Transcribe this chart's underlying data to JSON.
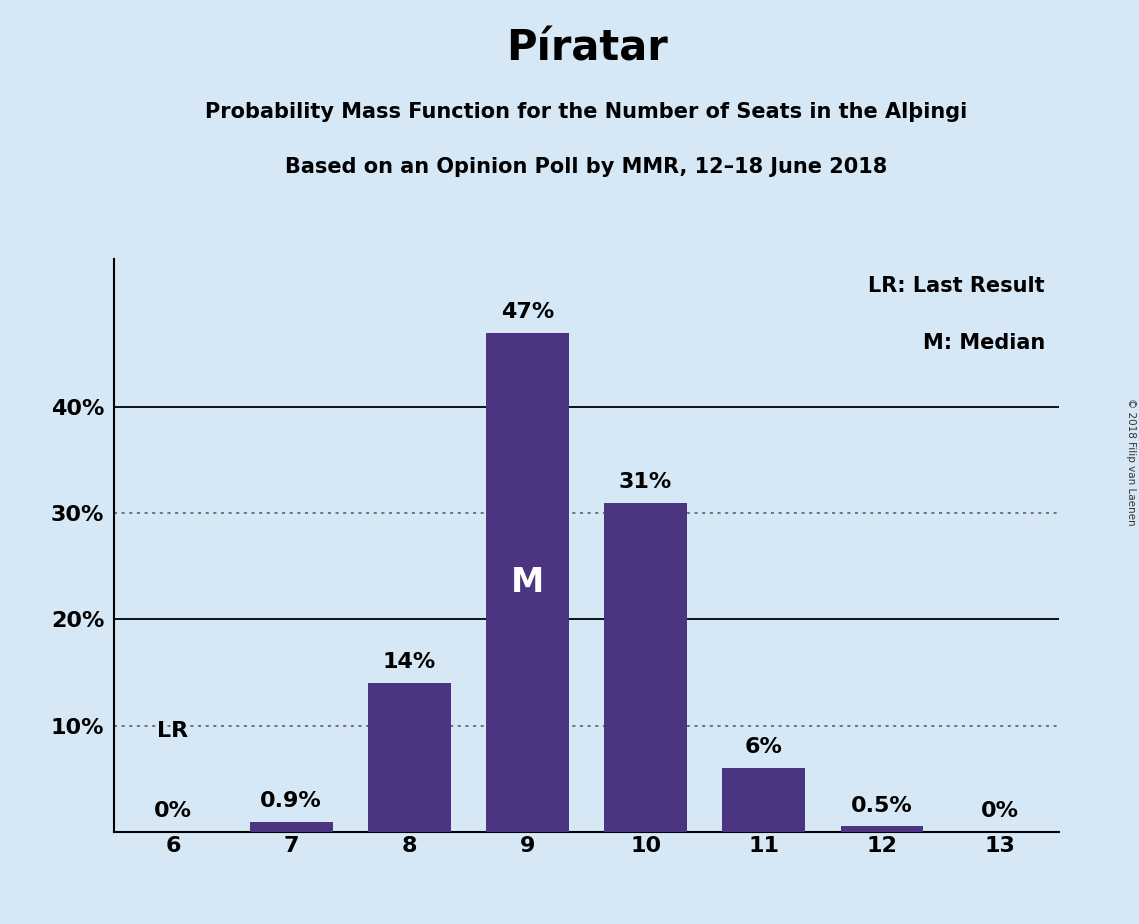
{
  "title": "Píratar",
  "subtitle1": "Probability Mass Function for the Number of Seats in the Alþingi",
  "subtitle2": "Based on an Opinion Poll by MMR, 12–18 June 2018",
  "categories": [
    6,
    7,
    8,
    9,
    10,
    11,
    12,
    13
  ],
  "values": [
    0.0,
    0.9,
    14.0,
    47.0,
    31.0,
    6.0,
    0.5,
    0.0
  ],
  "bar_color": "#4B3480",
  "background_color": "#D6E8F5",
  "bar_labels": [
    "0%",
    "0.9%",
    "14%",
    "47%",
    "31%",
    "6%",
    "0.5%",
    "0%"
  ],
  "median_seat": 9,
  "median_label": "M",
  "lr_seat": 6,
  "lr_label": "LR",
  "legend_lr": "LR: Last Result",
  "legend_m": "M: Median",
  "yticks": [
    0,
    10,
    20,
    30,
    40
  ],
  "ytick_labels": [
    "",
    "10%",
    "20%",
    "30%",
    "40%"
  ],
  "solid_gridlines": [
    20,
    40
  ],
  "dotted_gridlines": [
    10,
    30
  ],
  "copyright": "© 2018 Filip van Laenen",
  "ylim": [
    0,
    54
  ],
  "title_fontsize": 30,
  "subtitle_fontsize": 15,
  "bar_label_fontsize": 16,
  "axis_tick_fontsize": 16,
  "median_label_fontsize": 24,
  "lr_label_fontsize": 16,
  "legend_fontsize": 15
}
